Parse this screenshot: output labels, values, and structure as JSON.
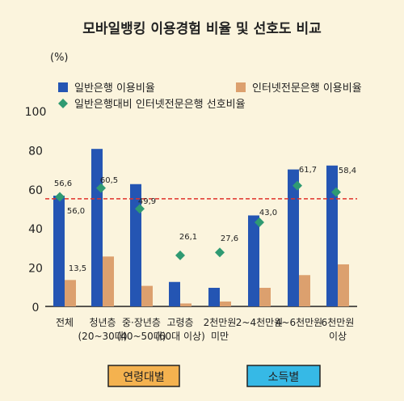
{
  "colors": {
    "background": "#fbf4dd",
    "bank_usage": "#2455b3",
    "internet_usage": "#dca06e",
    "preference_marker": "#2f9a72",
    "reference_line": "#e0312b",
    "age_group_box": "#f4b24f",
    "income_group_box": "#36b9e6"
  },
  "chart_data": {
    "type": "bar",
    "title": "모바일뱅킹 이용경험 비율 및 선호도 비교",
    "ylabel": "(%)",
    "ylim": [
      0,
      100
    ],
    "yticks": [
      0,
      20,
      40,
      60,
      80,
      100
    ],
    "grid": false,
    "legend_position": "top-left",
    "categories": [
      [
        "전체"
      ],
      [
        "청년층",
        "(20~30대)"
      ],
      [
        "중·장년층",
        "(40~50대)"
      ],
      [
        "고령층",
        "(60대 이상)"
      ],
      [
        "2천만원",
        "미만"
      ],
      [
        "2~4천만원"
      ],
      [
        "4~6천만원"
      ],
      [
        "6천만원",
        "이상"
      ]
    ],
    "series": [
      {
        "name": "일반은행 이용비율",
        "type": "bar",
        "values": [
          56.6,
          80.5,
          62.5,
          12.5,
          9.5,
          46.5,
          70.0,
          72.0
        ]
      },
      {
        "name": "인터넷전문은행 이용비율",
        "type": "bar",
        "values": [
          13.5,
          25.5,
          10.5,
          1.5,
          2.5,
          9.5,
          16.0,
          21.5
        ]
      },
      {
        "name": "일반은행대비 인터넷전문은행 선호비율",
        "type": "scatter",
        "values": [
          56.0,
          60.5,
          49.9,
          26.1,
          27.6,
          43.0,
          61.7,
          58.4
        ]
      }
    ],
    "bar_labels": [
      "56,6",
      "",
      "",
      "",
      "",
      "",
      "",
      ""
    ],
    "internet_labels": [
      "13,5",
      "",
      "",
      "",
      "",
      "",
      "",
      ""
    ],
    "marker_labels": [
      "56,0",
      "60,5",
      "49,9",
      "26,1",
      "27,6",
      "43,0",
      "61,7",
      "58,4"
    ],
    "reference_line": 55,
    "groups": [
      {
        "label": "연령대별",
        "from": 1,
        "to": 3
      },
      {
        "label": "소득별",
        "from": 4,
        "to": 7
      }
    ]
  }
}
